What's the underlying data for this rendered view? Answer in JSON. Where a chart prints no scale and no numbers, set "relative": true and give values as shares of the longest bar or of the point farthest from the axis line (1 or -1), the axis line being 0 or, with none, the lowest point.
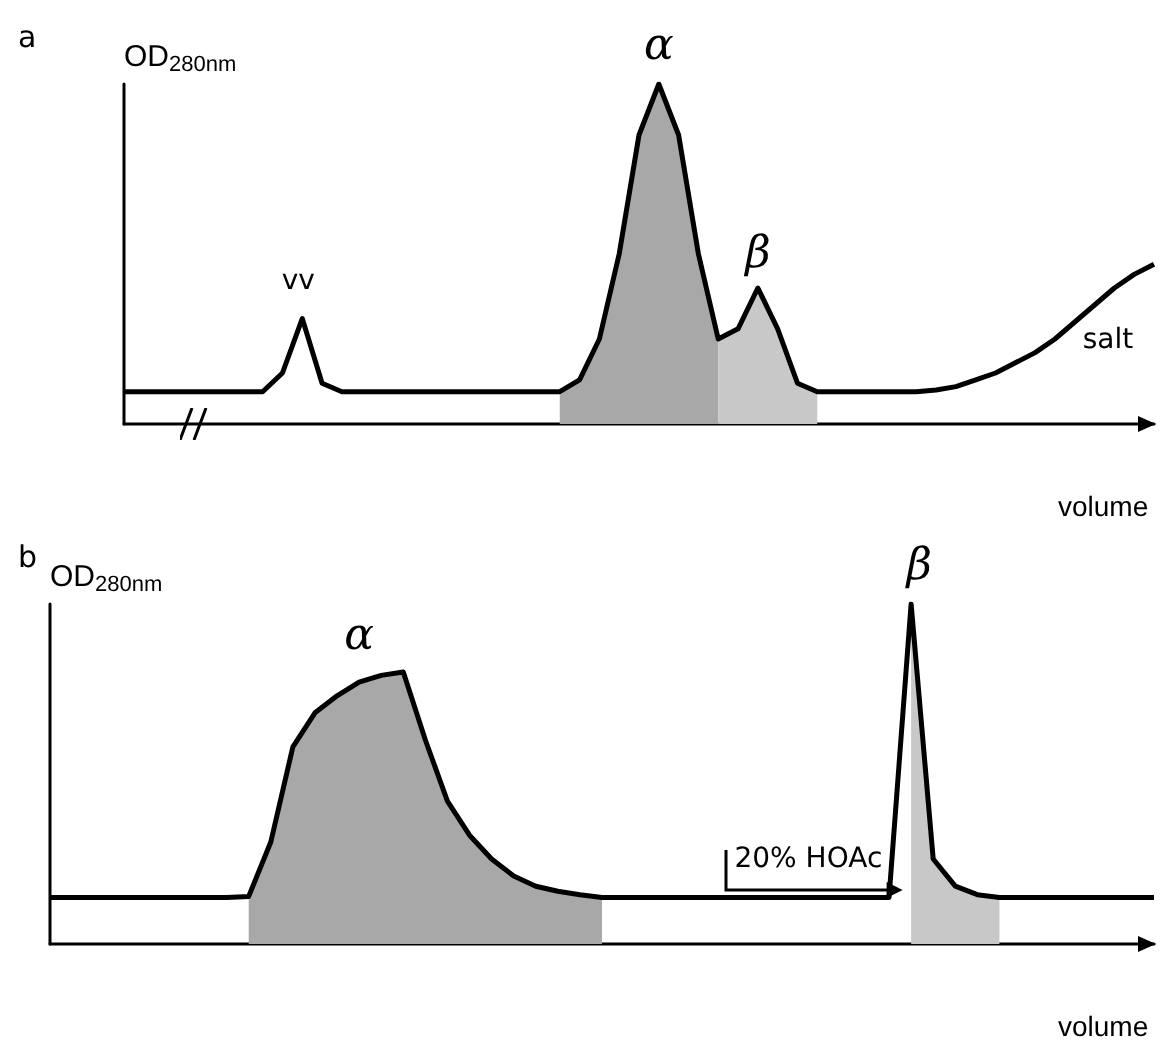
{
  "chart_data": [
    {
      "type": "line",
      "title": "a",
      "ylabel": "OD$_{280nm}$",
      "xlabel": "volume",
      "relative": true,
      "grid": false,
      "marker": "none",
      "categories": [
        null,
        null,
        null,
        null,
        null,
        null,
        null,
        null,
        null,
        null,
        null,
        null,
        null,
        null,
        null,
        null,
        null,
        null,
        null,
        null,
        null,
        null,
        null,
        null,
        null,
        null,
        null,
        null,
        null,
        null,
        null,
        null,
        null,
        null,
        null,
        null,
        null,
        null,
        null,
        null,
        null,
        null,
        null,
        null,
        null,
        null,
        null,
        null,
        null,
        null,
        null,
        null,
        null
      ],
      "annotations": [
        "vv",
        "α",
        "β",
        "salt"
      ],
      "series": [
        {
          "type": "area",
          "color": "#a8a8a8",
          "values": [
            null,
            null,
            null,
            null,
            null,
            null,
            null,
            null,
            null,
            null,
            null,
            null,
            null,
            null,
            null,
            null,
            null,
            null,
            null,
            null,
            null,
            null,
            0.095,
            0.13,
            0.25,
            0.5,
            0.85,
            1.0,
            0.85,
            0.5,
            0.25,
            null,
            null,
            null,
            null,
            null,
            null,
            null,
            null,
            null,
            null,
            null,
            null,
            null,
            null,
            null,
            null,
            null,
            null,
            null,
            null,
            null,
            null
          ]
        },
        {
          "type": "area",
          "color": "#c8c8c8",
          "values": [
            null,
            null,
            null,
            null,
            null,
            null,
            null,
            null,
            null,
            null,
            null,
            null,
            null,
            null,
            null,
            null,
            null,
            null,
            null,
            null,
            null,
            null,
            null,
            null,
            null,
            null,
            null,
            null,
            null,
            null,
            0.25,
            0.28,
            0.4,
            0.28,
            0.12,
            0.095,
            null,
            null,
            null,
            null,
            null,
            null,
            null,
            null,
            null,
            null,
            null,
            null,
            null,
            null,
            null,
            null,
            null
          ]
        },
        {
          "color": "#000000",
          "values": [
            0.095,
            0.095,
            0.095,
            0.095,
            0.095,
            0.095,
            0.095,
            0.095,
            0.15,
            0.31,
            0.12,
            0.095,
            0.095,
            0.095,
            0.095,
            0.095,
            0.095,
            0.095,
            0.095,
            0.095,
            0.095,
            0.095,
            0.095,
            0.13,
            0.25,
            0.5,
            0.85,
            1.0,
            0.85,
            0.5,
            0.25,
            0.28,
            0.4,
            0.28,
            0.12,
            0.095,
            0.095,
            0.095,
            0.095,
            0.095,
            0.095,
            0.1,
            0.11,
            0.13,
            0.15,
            0.18,
            0.21,
            0.25,
            0.3,
            0.35,
            0.4,
            0.44,
            0.47
          ]
        }
      ]
    },
    {
      "type": "line",
      "title": "b",
      "ylabel": "OD$_{280nm}$",
      "xlabel": "volume",
      "relative": true,
      "grid": false,
      "marker": "none",
      "categories": [
        null,
        null,
        null,
        null,
        null,
        null,
        null,
        null,
        null,
        null,
        null,
        null,
        null,
        null,
        null,
        null,
        null,
        null,
        null,
        null,
        null,
        null,
        null,
        null,
        null,
        null,
        null,
        null,
        null,
        null,
        null,
        null,
        null,
        null,
        null,
        null,
        null,
        null,
        null,
        null,
        null,
        null,
        null,
        null,
        null,
        null,
        null,
        null,
        null,
        null,
        null
      ],
      "annotations": [
        "α",
        "β",
        "20% HOAc"
      ],
      "series": [
        {
          "type": "area",
          "color": "#a8a8a8",
          "values": [
            null,
            null,
            null,
            null,
            null,
            null,
            null,
            null,
            null,
            0.14,
            0.3,
            0.58,
            0.68,
            0.73,
            0.77,
            0.79,
            0.8,
            0.6,
            0.42,
            0.32,
            0.25,
            0.2,
            0.17,
            0.155,
            0.145,
            0.137,
            null,
            null,
            null,
            null,
            null,
            null,
            null,
            null,
            null,
            null,
            null,
            null,
            null,
            null,
            null,
            null,
            null,
            null,
            null,
            null,
            null,
            null,
            null,
            null,
            null
          ]
        },
        {
          "type": "area",
          "color": "#c8c8c8",
          "values": [
            null,
            null,
            null,
            null,
            null,
            null,
            null,
            null,
            null,
            null,
            null,
            null,
            null,
            null,
            null,
            null,
            null,
            null,
            null,
            null,
            null,
            null,
            null,
            null,
            null,
            null,
            null,
            null,
            null,
            null,
            null,
            null,
            null,
            null,
            null,
            null,
            null,
            null,
            null,
            1.0,
            0.25,
            0.17,
            0.145,
            0.137,
            null,
            null,
            null,
            null,
            null,
            null,
            null
          ]
        },
        {
          "color": "#000000",
          "values": [
            0.137,
            0.137,
            0.137,
            0.137,
            0.137,
            0.137,
            0.137,
            0.137,
            0.137,
            0.14,
            0.3,
            0.58,
            0.68,
            0.73,
            0.77,
            0.79,
            0.8,
            0.6,
            0.42,
            0.32,
            0.25,
            0.2,
            0.17,
            0.155,
            0.145,
            0.137,
            0.137,
            0.137,
            0.137,
            0.137,
            0.137,
            0.137,
            0.137,
            0.137,
            0.137,
            0.137,
            0.137,
            0.137,
            0.137,
            1.0,
            0.25,
            0.17,
            0.145,
            0.137,
            0.137,
            0.137,
            0.137,
            0.137,
            0.137,
            0.137,
            0.137
          ]
        }
      ]
    }
  ]
}
